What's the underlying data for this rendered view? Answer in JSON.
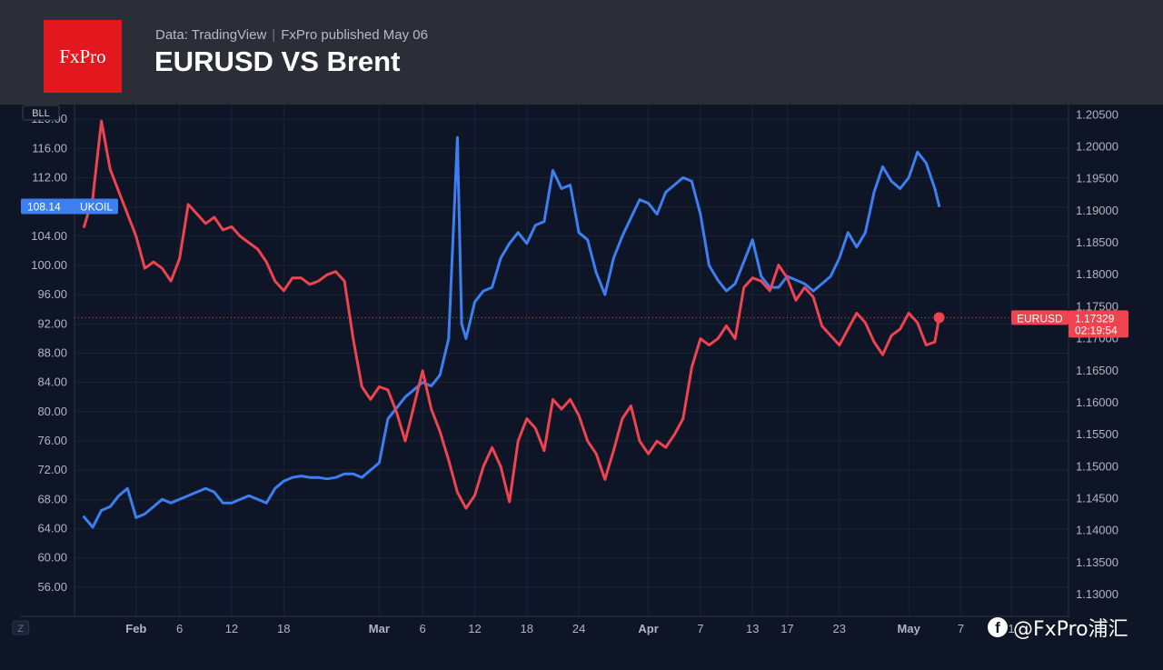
{
  "header": {
    "logo_text": "FxPro",
    "meta_data": "Data: TradingView",
    "meta_published": "FxPro published May 06",
    "title": "EURUSD VS Brent",
    "brand_color": "#e2181e"
  },
  "watermark": {
    "icon": "facebook-icon",
    "text": "@FxPro浦汇"
  },
  "chart_data": {
    "type": "line",
    "left_axis": {
      "unit_label": "BLL",
      "ticks": [
        "120.00",
        "116.00",
        "112.00",
        "108.00",
        "104.00",
        "100.00",
        "96.00",
        "92.00",
        "88.00",
        "84.00",
        "80.00",
        "76.00",
        "72.00",
        "68.00",
        "64.00",
        "60.00",
        "56.00"
      ],
      "range": [
        52,
        122
      ]
    },
    "right_axis": {
      "ticks": [
        "1.20500",
        "1.20000",
        "1.19500",
        "1.19000",
        "1.18500",
        "1.18000",
        "1.17500",
        "1.17000",
        "1.16500",
        "1.16000",
        "1.15500",
        "1.15000",
        "1.14500",
        "1.14000",
        "1.13500",
        "1.13000"
      ],
      "range": [
        1.1266,
        1.2066
      ]
    },
    "x_axis": {
      "labels": [
        {
          "text": "Z",
          "day": -13.3,
          "badge": true
        },
        {
          "text": "Feb",
          "day": 0,
          "bold": true
        },
        {
          "text": "6",
          "day": 5
        },
        {
          "text": "12",
          "day": 11
        },
        {
          "text": "18",
          "day": 17
        },
        {
          "text": "Mar",
          "day": 28,
          "bold": true
        },
        {
          "text": "6",
          "day": 33
        },
        {
          "text": "12",
          "day": 39
        },
        {
          "text": "18",
          "day": 45
        },
        {
          "text": "24",
          "day": 51
        },
        {
          "text": "Apr",
          "day": 59,
          "bold": true
        },
        {
          "text": "7",
          "day": 65
        },
        {
          "text": "13",
          "day": 71
        },
        {
          "text": "17",
          "day": 75
        },
        {
          "text": "23",
          "day": 81
        },
        {
          "text": "May",
          "day": 89,
          "bold": true
        },
        {
          "text": "7",
          "day": 95
        },
        {
          "text": "1",
          "day": 100.8
        }
      ],
      "range": [
        -7.1,
        107.4
      ]
    },
    "grid": true,
    "series": [
      {
        "name": "UKOIL",
        "axis": "left",
        "color": "#3d7ff0",
        "last_label": "108.14",
        "points": [
          [
            -6,
            65.6
          ],
          [
            -5,
            64.2
          ],
          [
            -4,
            66.5
          ],
          [
            -3,
            67.0
          ],
          [
            -2,
            68.5
          ],
          [
            -1,
            69.5
          ],
          [
            0,
            65.5
          ],
          [
            1,
            66.0
          ],
          [
            2,
            67.0
          ],
          [
            3,
            68.0
          ],
          [
            4,
            67.5
          ],
          [
            5,
            68.0
          ],
          [
            6,
            68.5
          ],
          [
            7,
            69.0
          ],
          [
            8,
            69.5
          ],
          [
            9,
            69.0
          ],
          [
            10,
            67.5
          ],
          [
            11,
            67.5
          ],
          [
            12,
            68.0
          ],
          [
            13,
            68.5
          ],
          [
            14,
            68.0
          ],
          [
            15,
            67.5
          ],
          [
            16,
            69.5
          ],
          [
            17,
            70.5
          ],
          [
            18,
            71.0
          ],
          [
            19,
            71.2
          ],
          [
            20,
            71.0
          ],
          [
            21,
            71.0
          ],
          [
            22,
            70.8
          ],
          [
            23,
            71.0
          ],
          [
            24,
            71.5
          ],
          [
            25,
            71.5
          ],
          [
            26,
            71.0
          ],
          [
            27,
            72.0
          ],
          [
            28,
            73.0
          ],
          [
            29,
            79.0
          ],
          [
            30,
            80.5
          ],
          [
            31,
            82.0
          ],
          [
            32,
            83.0
          ],
          [
            33,
            84.0
          ],
          [
            34,
            83.5
          ],
          [
            35,
            85.0
          ],
          [
            36,
            90.0
          ],
          [
            37,
            117.5
          ],
          [
            37.5,
            92.0
          ],
          [
            38,
            90.0
          ],
          [
            39,
            95.0
          ],
          [
            40,
            96.5
          ],
          [
            41,
            97.0
          ],
          [
            42,
            101.0
          ],
          [
            43,
            103.0
          ],
          [
            44,
            104.5
          ],
          [
            45,
            103.0
          ],
          [
            46,
            105.5
          ],
          [
            47,
            106.0
          ],
          [
            48,
            113.0
          ],
          [
            49,
            110.5
          ],
          [
            50,
            111.0
          ],
          [
            51,
            104.5
          ],
          [
            52,
            103.5
          ],
          [
            53,
            99.0
          ],
          [
            54,
            96.0
          ],
          [
            55,
            101.0
          ],
          [
            56,
            104.0
          ],
          [
            57,
            106.5
          ],
          [
            58,
            109.0
          ],
          [
            59,
            108.5
          ],
          [
            60,
            107.0
          ],
          [
            61,
            110.0
          ],
          [
            62,
            111.0
          ],
          [
            63,
            112.0
          ],
          [
            64,
            111.5
          ],
          [
            65,
            107.0
          ],
          [
            66,
            100.0
          ],
          [
            67,
            98.0
          ],
          [
            68,
            96.5
          ],
          [
            69,
            97.5
          ],
          [
            70,
            100.5
          ],
          [
            71,
            103.5
          ],
          [
            72,
            98.5
          ],
          [
            73,
            97.0
          ],
          [
            74,
            97.0
          ],
          [
            75,
            98.5
          ],
          [
            76,
            98.0
          ],
          [
            77,
            97.5
          ],
          [
            78,
            96.5
          ],
          [
            79,
            97.5
          ],
          [
            80,
            98.5
          ],
          [
            81,
            101.0
          ],
          [
            82,
            104.5
          ],
          [
            83,
            102.5
          ],
          [
            84,
            104.5
          ],
          [
            85,
            110.0
          ],
          [
            86,
            113.5
          ],
          [
            87,
            111.5
          ],
          [
            88,
            110.5
          ],
          [
            89,
            112.0
          ],
          [
            90,
            115.5
          ],
          [
            91,
            114.0
          ],
          [
            92,
            110.5
          ],
          [
            92.5,
            108.14
          ]
        ]
      },
      {
        "name": "EURUSD",
        "axis": "right",
        "color": "#ef4350",
        "last_label": "1.17329",
        "timer": "02:19:54",
        "points": [
          [
            -6,
            1.1875
          ],
          [
            -5,
            1.192
          ],
          [
            -4,
            1.204
          ],
          [
            -3,
            1.1965
          ],
          [
            -2,
            1.193
          ],
          [
            -1,
            1.1895
          ],
          [
            0,
            1.186
          ],
          [
            1,
            1.181
          ],
          [
            2,
            1.182
          ],
          [
            3,
            1.181
          ],
          [
            4,
            1.179
          ],
          [
            5,
            1.1825
          ],
          [
            6,
            1.191
          ],
          [
            7,
            1.1895
          ],
          [
            8,
            1.188
          ],
          [
            9,
            1.189
          ],
          [
            10,
            1.187
          ],
          [
            11,
            1.1875
          ],
          [
            12,
            1.186
          ],
          [
            13,
            1.185
          ],
          [
            14,
            1.184
          ],
          [
            15,
            1.182
          ],
          [
            16,
            1.179
          ],
          [
            17,
            1.1775
          ],
          [
            18,
            1.1795
          ],
          [
            19,
            1.1795
          ],
          [
            20,
            1.1785
          ],
          [
            21,
            1.179
          ],
          [
            22,
            1.18
          ],
          [
            23,
            1.1805
          ],
          [
            24,
            1.179
          ],
          [
            25,
            1.17
          ],
          [
            26,
            1.1625
          ],
          [
            27,
            1.1605
          ],
          [
            28,
            1.1625
          ],
          [
            29,
            1.162
          ],
          [
            30,
            1.1585
          ],
          [
            31,
            1.154
          ],
          [
            32,
            1.1595
          ],
          [
            33,
            1.165
          ],
          [
            34,
            1.159
          ],
          [
            35,
            1.1555
          ],
          [
            36,
            1.151
          ],
          [
            37,
            1.146
          ],
          [
            38,
            1.1435
          ],
          [
            39,
            1.1455
          ],
          [
            40,
            1.15
          ],
          [
            41,
            1.153
          ],
          [
            42,
            1.15
          ],
          [
            43,
            1.1445
          ],
          [
            44,
            1.154
          ],
          [
            45,
            1.1575
          ],
          [
            46,
            1.156
          ],
          [
            47,
            1.1525
          ],
          [
            48,
            1.1605
          ],
          [
            49,
            1.159
          ],
          [
            50,
            1.1605
          ],
          [
            51,
            1.158
          ],
          [
            52,
            1.154
          ],
          [
            53,
            1.152
          ],
          [
            54,
            1.148
          ],
          [
            55,
            1.1525
          ],
          [
            56,
            1.1575
          ],
          [
            57,
            1.1595
          ],
          [
            58,
            1.154
          ],
          [
            59,
            1.152
          ],
          [
            60,
            1.154
          ],
          [
            61,
            1.153
          ],
          [
            62,
            1.155
          ],
          [
            63,
            1.1575
          ],
          [
            64,
            1.1655
          ],
          [
            65,
            1.17
          ],
          [
            66,
            1.169
          ],
          [
            67,
            1.17
          ],
          [
            68,
            1.172
          ],
          [
            69,
            1.17
          ],
          [
            70,
            1.178
          ],
          [
            71,
            1.1795
          ],
          [
            72,
            1.179
          ],
          [
            73,
            1.1775
          ],
          [
            74,
            1.1815
          ],
          [
            75,
            1.1795
          ],
          [
            76,
            1.176
          ],
          [
            77,
            1.178
          ],
          [
            78,
            1.1765
          ],
          [
            79,
            1.172
          ],
          [
            80,
            1.1705
          ],
          [
            81,
            1.169
          ],
          [
            82,
            1.1715
          ],
          [
            83,
            1.174
          ],
          [
            84,
            1.1725
          ],
          [
            85,
            1.1695
          ],
          [
            86,
            1.1675
          ],
          [
            87,
            1.1705
          ],
          [
            88,
            1.1715
          ],
          [
            89,
            1.174
          ],
          [
            90,
            1.1725
          ],
          [
            91,
            1.169
          ],
          [
            92,
            1.1695
          ],
          [
            92.5,
            1.17329
          ]
        ]
      }
    ],
    "crosshair": {
      "axis": "right",
      "value": 1.17329,
      "label": "EURUSD"
    }
  }
}
